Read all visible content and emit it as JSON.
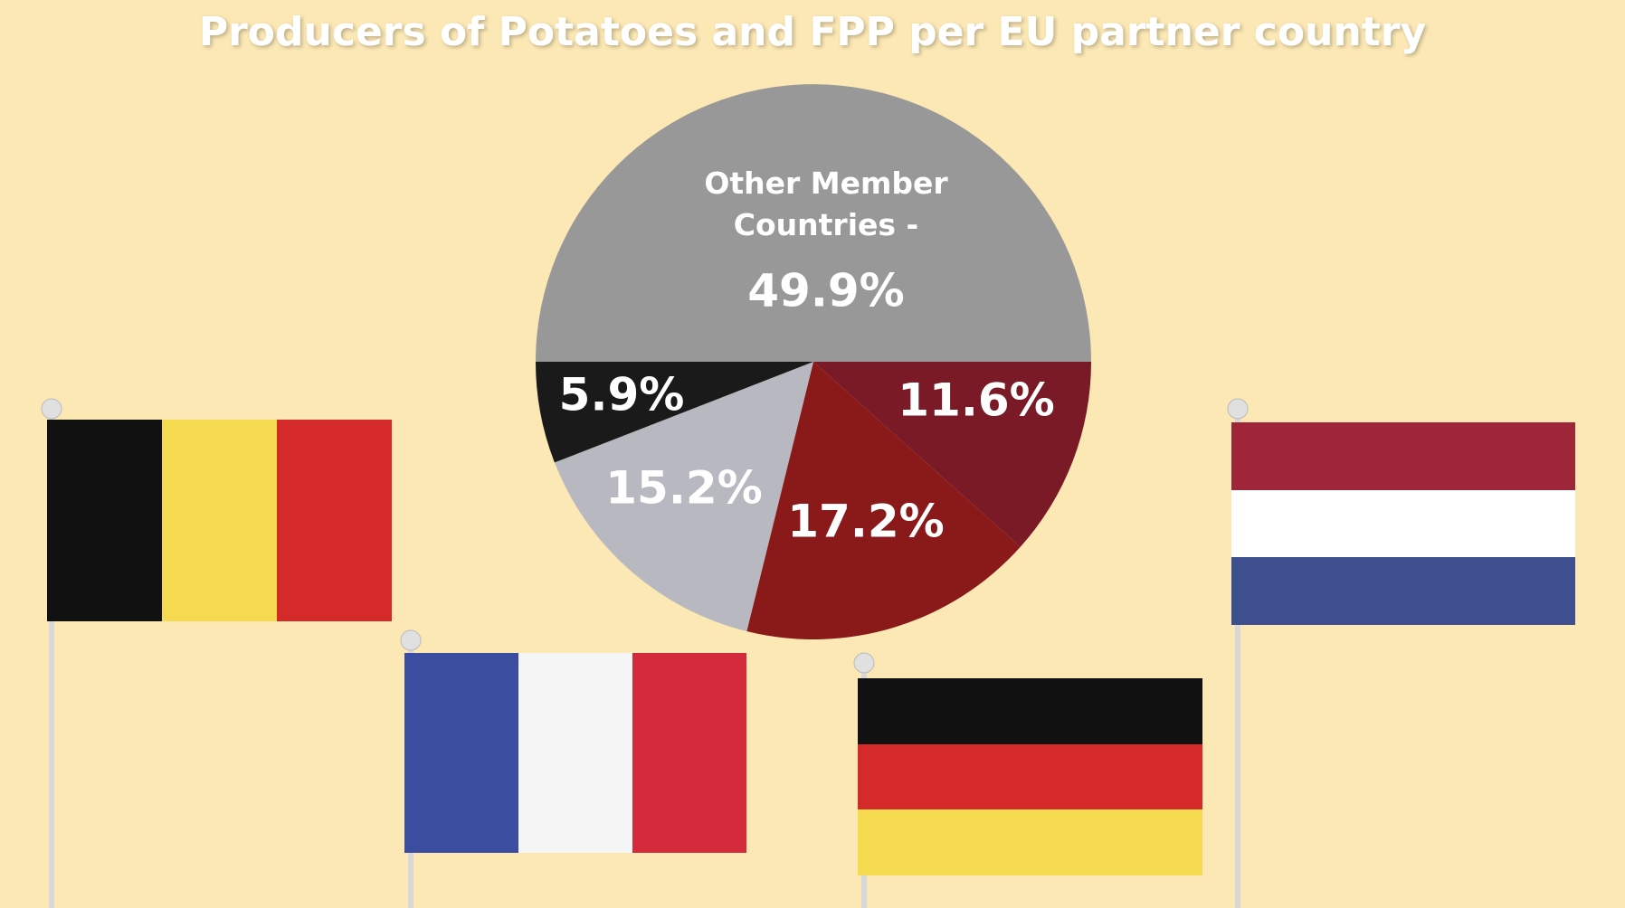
{
  "chart_data": {
    "type": "pie",
    "title": "Producers of Potatoes and FPP per EU partner country",
    "categories": [
      "Other Member Countries -",
      null,
      null,
      null,
      null
    ],
    "values": [
      49.9,
      11.6,
      17.2,
      15.2,
      5.9
    ],
    "value_labels": [
      "49.9%",
      "11.6%",
      "17.2%",
      "15.2%",
      "5.9%"
    ],
    "colors": [
      "#989898",
      "#7a1a26",
      "#8a1a1a",
      "#b8b8c0",
      "#1a1a1a"
    ]
  }
}
